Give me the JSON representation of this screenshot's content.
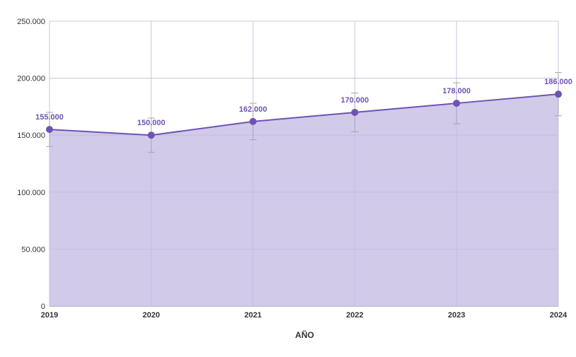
{
  "chart_data": {
    "type": "area",
    "title": "",
    "xlabel": "AÑO",
    "ylabel": "",
    "x": [
      "2019",
      "2020",
      "2021",
      "2022",
      "2023",
      "2024"
    ],
    "series": [
      {
        "values": [
          155000,
          150000,
          162000,
          170000,
          178000,
          186000
        ],
        "data_labels": [
          "155.000",
          "150.000",
          "162.000",
          "170.000",
          "178.000",
          "186.000"
        ],
        "error_low": [
          140000,
          135000,
          146000,
          153000,
          160000,
          167000
        ],
        "error_high": [
          170000,
          165000,
          178000,
          187000,
          196000,
          205000
        ]
      }
    ],
    "ylim": [
      0,
      250000
    ],
    "yticks": [
      0,
      50000,
      100000,
      150000,
      200000,
      250000
    ],
    "ytick_labels": [
      "0",
      "50.000",
      "100.000",
      "150.000",
      "200.000",
      "250.000"
    ],
    "grid": true,
    "colors": {
      "line": "#6f52b5",
      "fill": "#cfc7e8",
      "label": "#6f52b5",
      "grid": "#d9d5e2",
      "error_bar": "#a8a3b2",
      "axis_text": "#333333"
    }
  }
}
